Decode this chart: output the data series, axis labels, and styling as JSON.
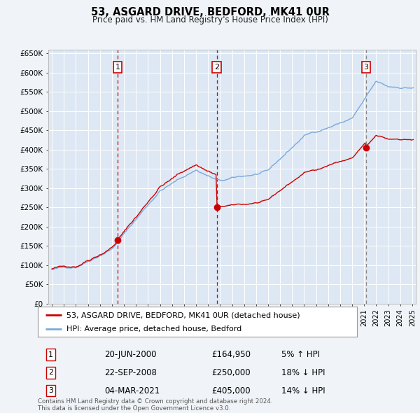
{
  "title": "53, ASGARD DRIVE, BEDFORD, MK41 0UR",
  "subtitle": "Price paid vs. HM Land Registry's House Price Index (HPI)",
  "background_color": "#f0f4f8",
  "plot_bg_color": "#dde8f4",
  "grid_color": "#ffffff",
  "red_line_color": "#cc0000",
  "blue_line_color": "#7aaadd",
  "vline_color_12": "#cc0000",
  "vline_color_3": "#888888",
  "transactions": [
    {
      "label": "1",
      "date_num": 2000.47,
      "price": 164950,
      "pct": "5%",
      "dir": "↑",
      "date_str": "20-JUN-2000"
    },
    {
      "label": "2",
      "date_num": 2008.73,
      "price": 250000,
      "pct": "18%",
      "dir": "↓",
      "date_str": "22-SEP-2008"
    },
    {
      "label": "3",
      "date_num": 2021.17,
      "price": 405000,
      "pct": "14%",
      "dir": "↓",
      "date_str": "04-MAR-2021"
    }
  ],
  "legend_red": "53, ASGARD DRIVE, BEDFORD, MK41 0UR (detached house)",
  "legend_blue": "HPI: Average price, detached house, Bedford",
  "footer1": "Contains HM Land Registry data © Crown copyright and database right 2024.",
  "footer2": "This data is licensed under the Open Government Licence v3.0.",
  "ylim": [
    0,
    660000
  ],
  "xlim_start": 1994.7,
  "xlim_end": 2025.3,
  "yticks": [
    0,
    50000,
    100000,
    150000,
    200000,
    250000,
    300000,
    350000,
    400000,
    450000,
    500000,
    550000,
    600000,
    650000
  ],
  "xticks": [
    1995,
    1996,
    1997,
    1998,
    1999,
    2000,
    2001,
    2002,
    2003,
    2004,
    2005,
    2006,
    2007,
    2008,
    2009,
    2010,
    2011,
    2012,
    2013,
    2014,
    2015,
    2016,
    2017,
    2018,
    2019,
    2020,
    2021,
    2022,
    2023,
    2024,
    2025
  ]
}
